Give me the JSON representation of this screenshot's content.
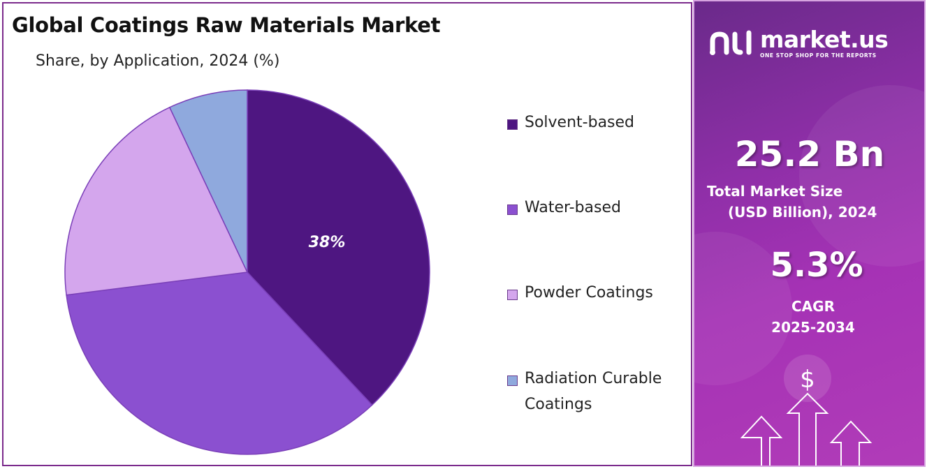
{
  "header": {
    "title": "Global Coatings Raw Materials Market",
    "subtitle": "Share, by Application, 2024 (%)"
  },
  "chart_data": {
    "type": "pie",
    "title": "Global Coatings Raw Materials Market",
    "subtitle": "Share, by Application, 2024 (%)",
    "categories": [
      "Solvent-based",
      "Water-based",
      "Powder Coatings",
      "Radiation Curable Coatings"
    ],
    "values": [
      38,
      35,
      20,
      7
    ],
    "colors": [
      "#4e1681",
      "#8b50d0",
      "#d4a6ed",
      "#8fa9dd"
    ],
    "data_labels": [
      "38%",
      "",
      "",
      ""
    ],
    "start_angle_deg": 0,
    "direction": "clockwise",
    "legend_position": "right"
  },
  "legend": {
    "items": [
      {
        "label": "Solvent-based",
        "color": "#4e1681"
      },
      {
        "label": "Water-based",
        "color": "#8b50d0"
      },
      {
        "label": "Powder Coatings",
        "color": "#d4a6ed"
      },
      {
        "label": "Radiation Curable Coatings",
        "color": "#8fa9dd"
      }
    ]
  },
  "sidebar": {
    "brand": "market.us",
    "tagline": "ONE STOP SHOP FOR THE REPORTS",
    "market_size_value": "25.2 Bn",
    "market_size_label_line1": "Total Market Size",
    "market_size_label_line2": "(USD Billion), 2024",
    "cagr_value": "5.3%",
    "cagr_label_line1": "CAGR",
    "cagr_label_line2": "2025-2034",
    "currency_symbol": "$"
  }
}
